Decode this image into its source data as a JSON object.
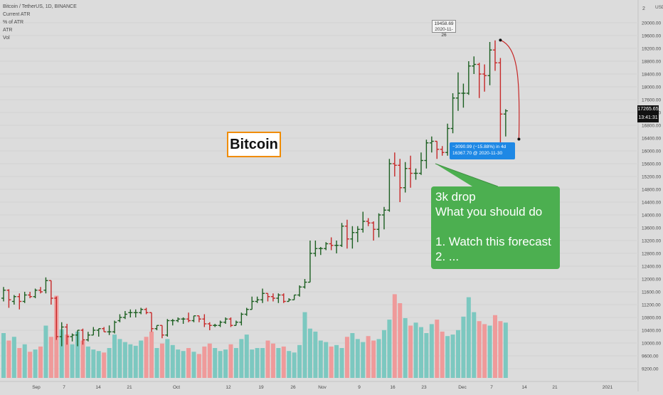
{
  "legend": {
    "symbol": "Bitcoin / TetherUS, 1D, BINANCE",
    "indicators": [
      "Current ATR",
      "% of ATR",
      "ATR",
      "Vol"
    ]
  },
  "price_axis": {
    "currency": "USDT",
    "ticks": [
      "20000.00",
      "19600.00",
      "19200.00",
      "18800.00",
      "18400.00",
      "18000.00",
      "17600.00",
      "17200.00",
      "16800.00",
      "16400.00",
      "16000.00",
      "15600.00",
      "15200.00",
      "14800.00",
      "14400.00",
      "14000.00",
      "13600.00",
      "13200.00",
      "12800.00",
      "12400.00",
      "12000.00",
      "11600.00",
      "11200.00",
      "10800.00",
      "10400.00",
      "10000.00",
      "9600.00",
      "9200.00"
    ],
    "top_tick": "2",
    "current_price": "17265.65",
    "countdown": "13:41:31"
  },
  "time_axis": {
    "ticks": [
      "Sep",
      "7",
      "14",
      "21",
      "Oct",
      "12",
      "19",
      "26",
      "Nov",
      "9",
      "16",
      "23",
      "Dec",
      "7",
      "14",
      "21",
      "2021"
    ]
  },
  "annotation": {
    "title": "Bitcoin"
  },
  "measure": {
    "top_price": "19458.69",
    "top_date": "2020-11-26",
    "change_text": "−3090.99 (−15.88%) in 4d",
    "end_text": "16367.70 @ 2020-11-30"
  },
  "callout": {
    "lines": [
      "3k drop",
      "What you should do",
      "",
      "1. Watch this forecast",
      "2. ..."
    ]
  },
  "colors": {
    "up": "#1b5e20",
    "down": "#c62828",
    "vol_up": "#7cc8c0",
    "vol_down": "#ef9a9a",
    "background": "#dcdcdc",
    "callout": "#4caf50",
    "measure": "#1e88e5",
    "title_border": "#f08c00"
  },
  "chart_data": {
    "type": "bar",
    "subtype": "ohlc",
    "ylim": [
      9000,
      20100
    ],
    "x_start": "2020-08-24",
    "candles": [
      [
        "2020-08-24",
        11400,
        11750,
        11300,
        11650
      ],
      [
        "2020-08-25",
        11650,
        11680,
        11100,
        11350
      ],
      [
        "2020-08-26",
        11300,
        11500,
        11200,
        11450
      ],
      [
        "2020-08-27",
        11450,
        11550,
        11050,
        11300
      ],
      [
        "2020-08-28",
        11300,
        11600,
        11250,
        11500
      ],
      [
        "2020-08-29",
        11500,
        11600,
        11400,
        11450
      ],
      [
        "2020-08-30",
        11450,
        11700,
        11400,
        11650
      ],
      [
        "2020-08-31",
        11650,
        11750,
        11550,
        11600
      ],
      [
        "2020-09-01",
        11650,
        12050,
        11550,
        11950
      ],
      [
        "2020-09-02",
        11950,
        11950,
        11200,
        11400
      ],
      [
        "2020-09-03",
        11400,
        11450,
        10100,
        10200
      ],
      [
        "2020-09-04",
        10200,
        10650,
        9900,
        10500
      ],
      [
        "2020-09-05",
        10500,
        10600,
        9950,
        10200
      ],
      [
        "2020-09-06",
        10200,
        10300,
        10050,
        10250
      ],
      [
        "2020-09-07",
        10250,
        10400,
        9900,
        10400
      ],
      [
        "2020-09-08",
        10400,
        10450,
        9950,
        10100
      ],
      [
        "2020-09-09",
        10100,
        10350,
        10050,
        10250
      ],
      [
        "2020-09-10",
        10250,
        10500,
        10250,
        10400
      ],
      [
        "2020-09-11",
        10400,
        10450,
        10200,
        10450
      ],
      [
        "2020-09-12",
        10450,
        10500,
        10350,
        10350
      ],
      [
        "2020-09-13",
        10350,
        10550,
        10250,
        10350
      ],
      [
        "2020-09-14",
        10350,
        10700,
        10300,
        10650
      ],
      [
        "2020-09-15",
        10700,
        10900,
        10650,
        10800
      ],
      [
        "2020-09-16",
        10800,
        11000,
        10750,
        10900
      ],
      [
        "2020-09-17",
        10950,
        11050,
        10800,
        10950
      ],
      [
        "2020-09-18",
        10950,
        11050,
        10800,
        10950
      ],
      [
        "2020-09-19",
        10950,
        11100,
        10900,
        11050
      ],
      [
        "2020-09-20",
        11050,
        11100,
        10900,
        10950
      ],
      [
        "2020-09-21",
        10950,
        10950,
        10350,
        10450
      ],
      [
        "2020-09-22",
        10450,
        10550,
        10400,
        10550
      ],
      [
        "2020-09-23",
        10550,
        10550,
        10150,
        10250
      ],
      [
        "2020-09-24",
        10250,
        10750,
        10200,
        10700
      ],
      [
        "2020-09-25",
        10700,
        10750,
        10550,
        10700
      ],
      [
        "2020-09-26",
        10700,
        10800,
        10650,
        10750
      ],
      [
        "2020-09-27",
        10750,
        10800,
        10600,
        10750
      ],
      [
        "2020-09-28",
        10750,
        10950,
        10650,
        10700
      ],
      [
        "2020-09-29",
        10700,
        10850,
        10650,
        10850
      ],
      [
        "2020-09-30",
        10850,
        10850,
        10650,
        10750
      ],
      [
        "2020-10-01",
        10750,
        10900,
        10500,
        10600
      ],
      [
        "2020-10-02",
        10600,
        10650,
        10400,
        10550
      ],
      [
        "2020-10-03",
        10550,
        10600,
        10500,
        10550
      ],
      [
        "2020-10-04",
        10550,
        10700,
        10500,
        10650
      ],
      [
        "2020-10-05",
        10650,
        10800,
        10600,
        10750
      ],
      [
        "2020-10-06",
        10750,
        10800,
        10500,
        10550
      ],
      [
        "2020-10-07",
        10550,
        10700,
        10550,
        10650
      ],
      [
        "2020-10-08",
        10650,
        10950,
        10550,
        10900
      ],
      [
        "2020-10-09",
        10900,
        11100,
        10850,
        11050
      ],
      [
        "2020-10-10",
        11050,
        11450,
        11050,
        11300
      ],
      [
        "2020-10-11",
        11300,
        11450,
        11250,
        11350
      ],
      [
        "2020-10-12",
        11350,
        11700,
        11250,
        11550
      ],
      [
        "2020-10-13",
        11550,
        11550,
        11300,
        11450
      ],
      [
        "2020-10-14",
        11450,
        11550,
        11300,
        11400
      ],
      [
        "2020-10-15",
        11400,
        11550,
        11250,
        11500
      ],
      [
        "2020-10-16",
        11500,
        11550,
        11250,
        11300
      ],
      [
        "2020-10-17",
        11300,
        11400,
        11300,
        11350
      ],
      [
        "2020-10-18",
        11350,
        11500,
        11350,
        11500
      ],
      [
        "2020-10-19",
        11500,
        11800,
        11450,
        11750
      ],
      [
        "2020-10-20",
        11750,
        12000,
        11700,
        11900
      ],
      [
        "2020-10-21",
        11900,
        13200,
        11900,
        12800
      ],
      [
        "2020-10-22",
        12800,
        13200,
        12700,
        12950
      ],
      [
        "2020-10-23",
        12950,
        13000,
        12750,
        12950
      ],
      [
        "2020-10-24",
        12950,
        13150,
        12900,
        13100
      ],
      [
        "2020-10-25",
        13100,
        13300,
        12900,
        13050
      ],
      [
        "2020-10-26",
        13050,
        13200,
        12800,
        13050
      ],
      [
        "2020-10-27",
        13050,
        13750,
        13000,
        13650
      ],
      [
        "2020-10-28",
        13650,
        13850,
        12950,
        13250
      ],
      [
        "2020-10-29",
        13250,
        13650,
        12950,
        13450
      ],
      [
        "2020-10-30",
        13450,
        13650,
        13150,
        13550
      ],
      [
        "2020-10-31",
        13550,
        14100,
        13450,
        13800
      ],
      [
        "2020-11-01",
        13800,
        13900,
        13650,
        13750
      ],
      [
        "2020-11-02",
        13750,
        13800,
        13200,
        13550
      ],
      [
        "2020-11-03",
        13550,
        14050,
        13300,
        14000
      ],
      [
        "2020-11-04",
        14000,
        14250,
        13550,
        14150
      ],
      [
        "2020-11-05",
        14150,
        15750,
        14100,
        15600
      ],
      [
        "2020-11-06",
        15600,
        15950,
        15200,
        15550
      ],
      [
        "2020-11-07",
        15550,
        15750,
        14400,
        14850
      ],
      [
        "2020-11-08",
        14850,
        15650,
        14700,
        15450
      ],
      [
        "2020-11-09",
        15450,
        15850,
        14850,
        15300
      ],
      [
        "2020-11-10",
        15300,
        15450,
        15100,
        15300
      ],
      [
        "2020-11-11",
        15300,
        15950,
        15250,
        15700
      ],
      [
        "2020-11-12",
        15700,
        16350,
        15450,
        16250
      ],
      [
        "2020-11-13",
        16250,
        16450,
        15950,
        16300
      ],
      [
        "2020-11-14",
        16300,
        16300,
        15750,
        16050
      ],
      [
        "2020-11-15",
        16050,
        16150,
        15850,
        15950
      ],
      [
        "2020-11-16",
        15950,
        16850,
        15850,
        16700
      ],
      [
        "2020-11-17",
        16700,
        17800,
        16550,
        17650
      ],
      [
        "2020-11-18",
        17650,
        18450,
        17250,
        17800
      ],
      [
        "2020-11-19",
        17800,
        18100,
        17350,
        17800
      ],
      [
        "2020-11-20",
        17800,
        18800,
        17750,
        18650
      ],
      [
        "2020-11-21",
        18650,
        18950,
        18400,
        18700
      ],
      [
        "2020-11-22",
        18700,
        18750,
        17650,
        18400
      ],
      [
        "2020-11-23",
        18400,
        18700,
        17850,
        18350
      ],
      [
        "2020-11-24",
        18350,
        19400,
        18050,
        19150
      ],
      [
        "2020-11-25",
        19150,
        19450,
        18500,
        18750
      ],
      [
        "2020-11-26",
        18750,
        18900,
        16200,
        17150
      ],
      [
        "2020-11-27",
        17150,
        17300,
        16450,
        17250
      ]
    ],
    "volume_series": [
      {
        "name": "Vol",
        "values": [
          60,
          50,
          55,
          40,
          45,
          35,
          38,
          42,
          70,
          55,
          110,
          65,
          58,
          45,
          62,
          50,
          42,
          38,
          36,
          34,
          40,
          58,
          52,
          48,
          45,
          43,
          50,
          55,
          62,
          40,
          46,
          52,
          44,
          38,
          36,
          40,
          35,
          32,
          42,
          46,
          40,
          36,
          38,
          45,
          40,
          52,
          58,
          38,
          40,
          40,
          50,
          46,
          40,
          42,
          36,
          34,
          44,
          88,
          66,
          62,
          50,
          48,
          42,
          44,
          40,
          55,
          60,
          52,
          48,
          56,
          50,
          52,
          64,
          78,
          112,
          100,
          80,
          70,
          74,
          68,
          60,
          72,
          78,
          62,
          56,
          58,
          64,
          82,
          108,
          88,
          76,
          72,
          70,
          84,
          76,
          74
        ]
      }
    ],
    "xlabel": "",
    "ylabel": ""
  }
}
